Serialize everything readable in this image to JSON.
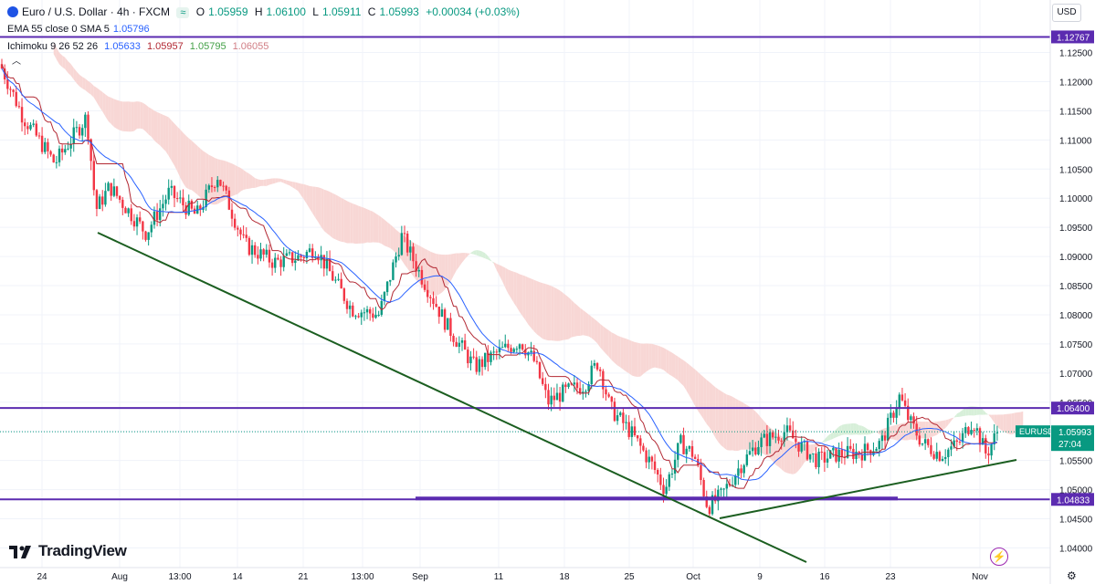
{
  "header": {
    "symbol": "Euro / U.S. Dollar · 4h · FXCM",
    "badge": "≈",
    "o_label": "O",
    "o": "1.05959",
    "h_label": "H",
    "h": "1.06100",
    "l_label": "L",
    "l": "1.05911",
    "c_label": "C",
    "c": "1.05993",
    "change": "+0.00034 (+0.03%)",
    "ema_label": "EMA 55 close 0 SMA 5",
    "ema_value": "1.05796",
    "ichimoku_label": "Ichimoku 9 26 52 26",
    "ichi_conv": "1.05633",
    "ichi_base": "1.05957",
    "ichi_lead1": "1.05795",
    "ichi_lead2": "1.06055"
  },
  "currency": "USD",
  "brand": "TradingView",
  "collapse_icon": "chevron-up",
  "chart_data": {
    "type": "candlestick",
    "symbol": "EURUSD",
    "timeframe": "4h",
    "ylim": [
      1.0375,
      1.1335
    ],
    "y_ticks": [
      "1.12500",
      "1.12000",
      "1.11500",
      "1.11000",
      "1.10500",
      "1.10000",
      "1.09500",
      "1.09000",
      "1.08500",
      "1.08000",
      "1.07500",
      "1.07000",
      "1.06500",
      "1.06000",
      "1.05500",
      "1.05000",
      "1.04500",
      "1.04000"
    ],
    "x_ticks": [
      "24",
      "Aug",
      "13:00",
      "14",
      "21",
      "13:00",
      "Sep",
      "11",
      "18",
      "25",
      "Oct",
      "9",
      "16",
      "23",
      "Nov"
    ],
    "horizontal_levels": [
      {
        "label": "1.12767",
        "value": 1.12767
      },
      {
        "label": "1.06400",
        "value": 1.064
      },
      {
        "label": "1.04833",
        "value": 1.04833
      }
    ],
    "last_price": {
      "symbol": "EURUSD",
      "value": "1.05993",
      "countdown": "27:04"
    },
    "colors": {
      "up": "#089981",
      "down": "#f23645",
      "level": "#5b2bb0",
      "trend": "#1b5e20",
      "ema": "#2962ff",
      "base": "#b22833",
      "cloud_bear": "#f8d7d5",
      "cloud_bull": "#d7efd9"
    }
  }
}
